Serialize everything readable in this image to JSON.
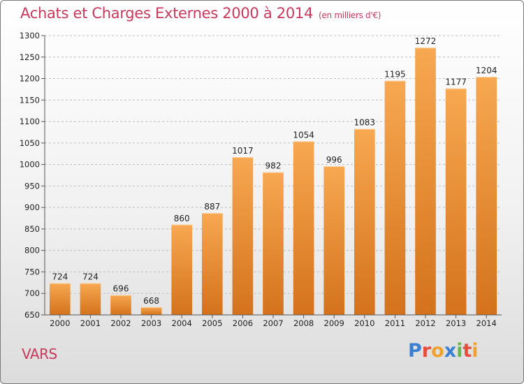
{
  "chart_data": {
    "type": "bar",
    "title": "Achats et Charges Externes 2000 à 2014",
    "subtitle": "(en milliers d'€)",
    "categories": [
      "2000",
      "2001",
      "2002",
      "2003",
      "2004",
      "2005",
      "2006",
      "2007",
      "2008",
      "2009",
      "2010",
      "2011",
      "2012",
      "2013",
      "2014"
    ],
    "values": [
      724,
      724,
      696,
      668,
      860,
      887,
      1017,
      982,
      1054,
      996,
      1083,
      1195,
      1272,
      1177,
      1204
    ],
    "ylim": [
      650,
      1300
    ],
    "yticks": [
      650,
      700,
      750,
      800,
      850,
      900,
      950,
      1000,
      1050,
      1100,
      1150,
      1200,
      1250,
      1300
    ],
    "xlabel": "",
    "ylabel": "",
    "grid": true,
    "bar_color": "#f5a04a"
  },
  "caption": {
    "city": "VARS"
  },
  "logo": {
    "letters": [
      "P",
      "r",
      "o",
      "x",
      "i",
      "t",
      "i"
    ],
    "colors": [
      "#3a7fd0",
      "#e94b3c",
      "#f2a12c",
      "#3a7fd0",
      "#6bb84a",
      "#e94b3c",
      "#f2a12c"
    ]
  }
}
